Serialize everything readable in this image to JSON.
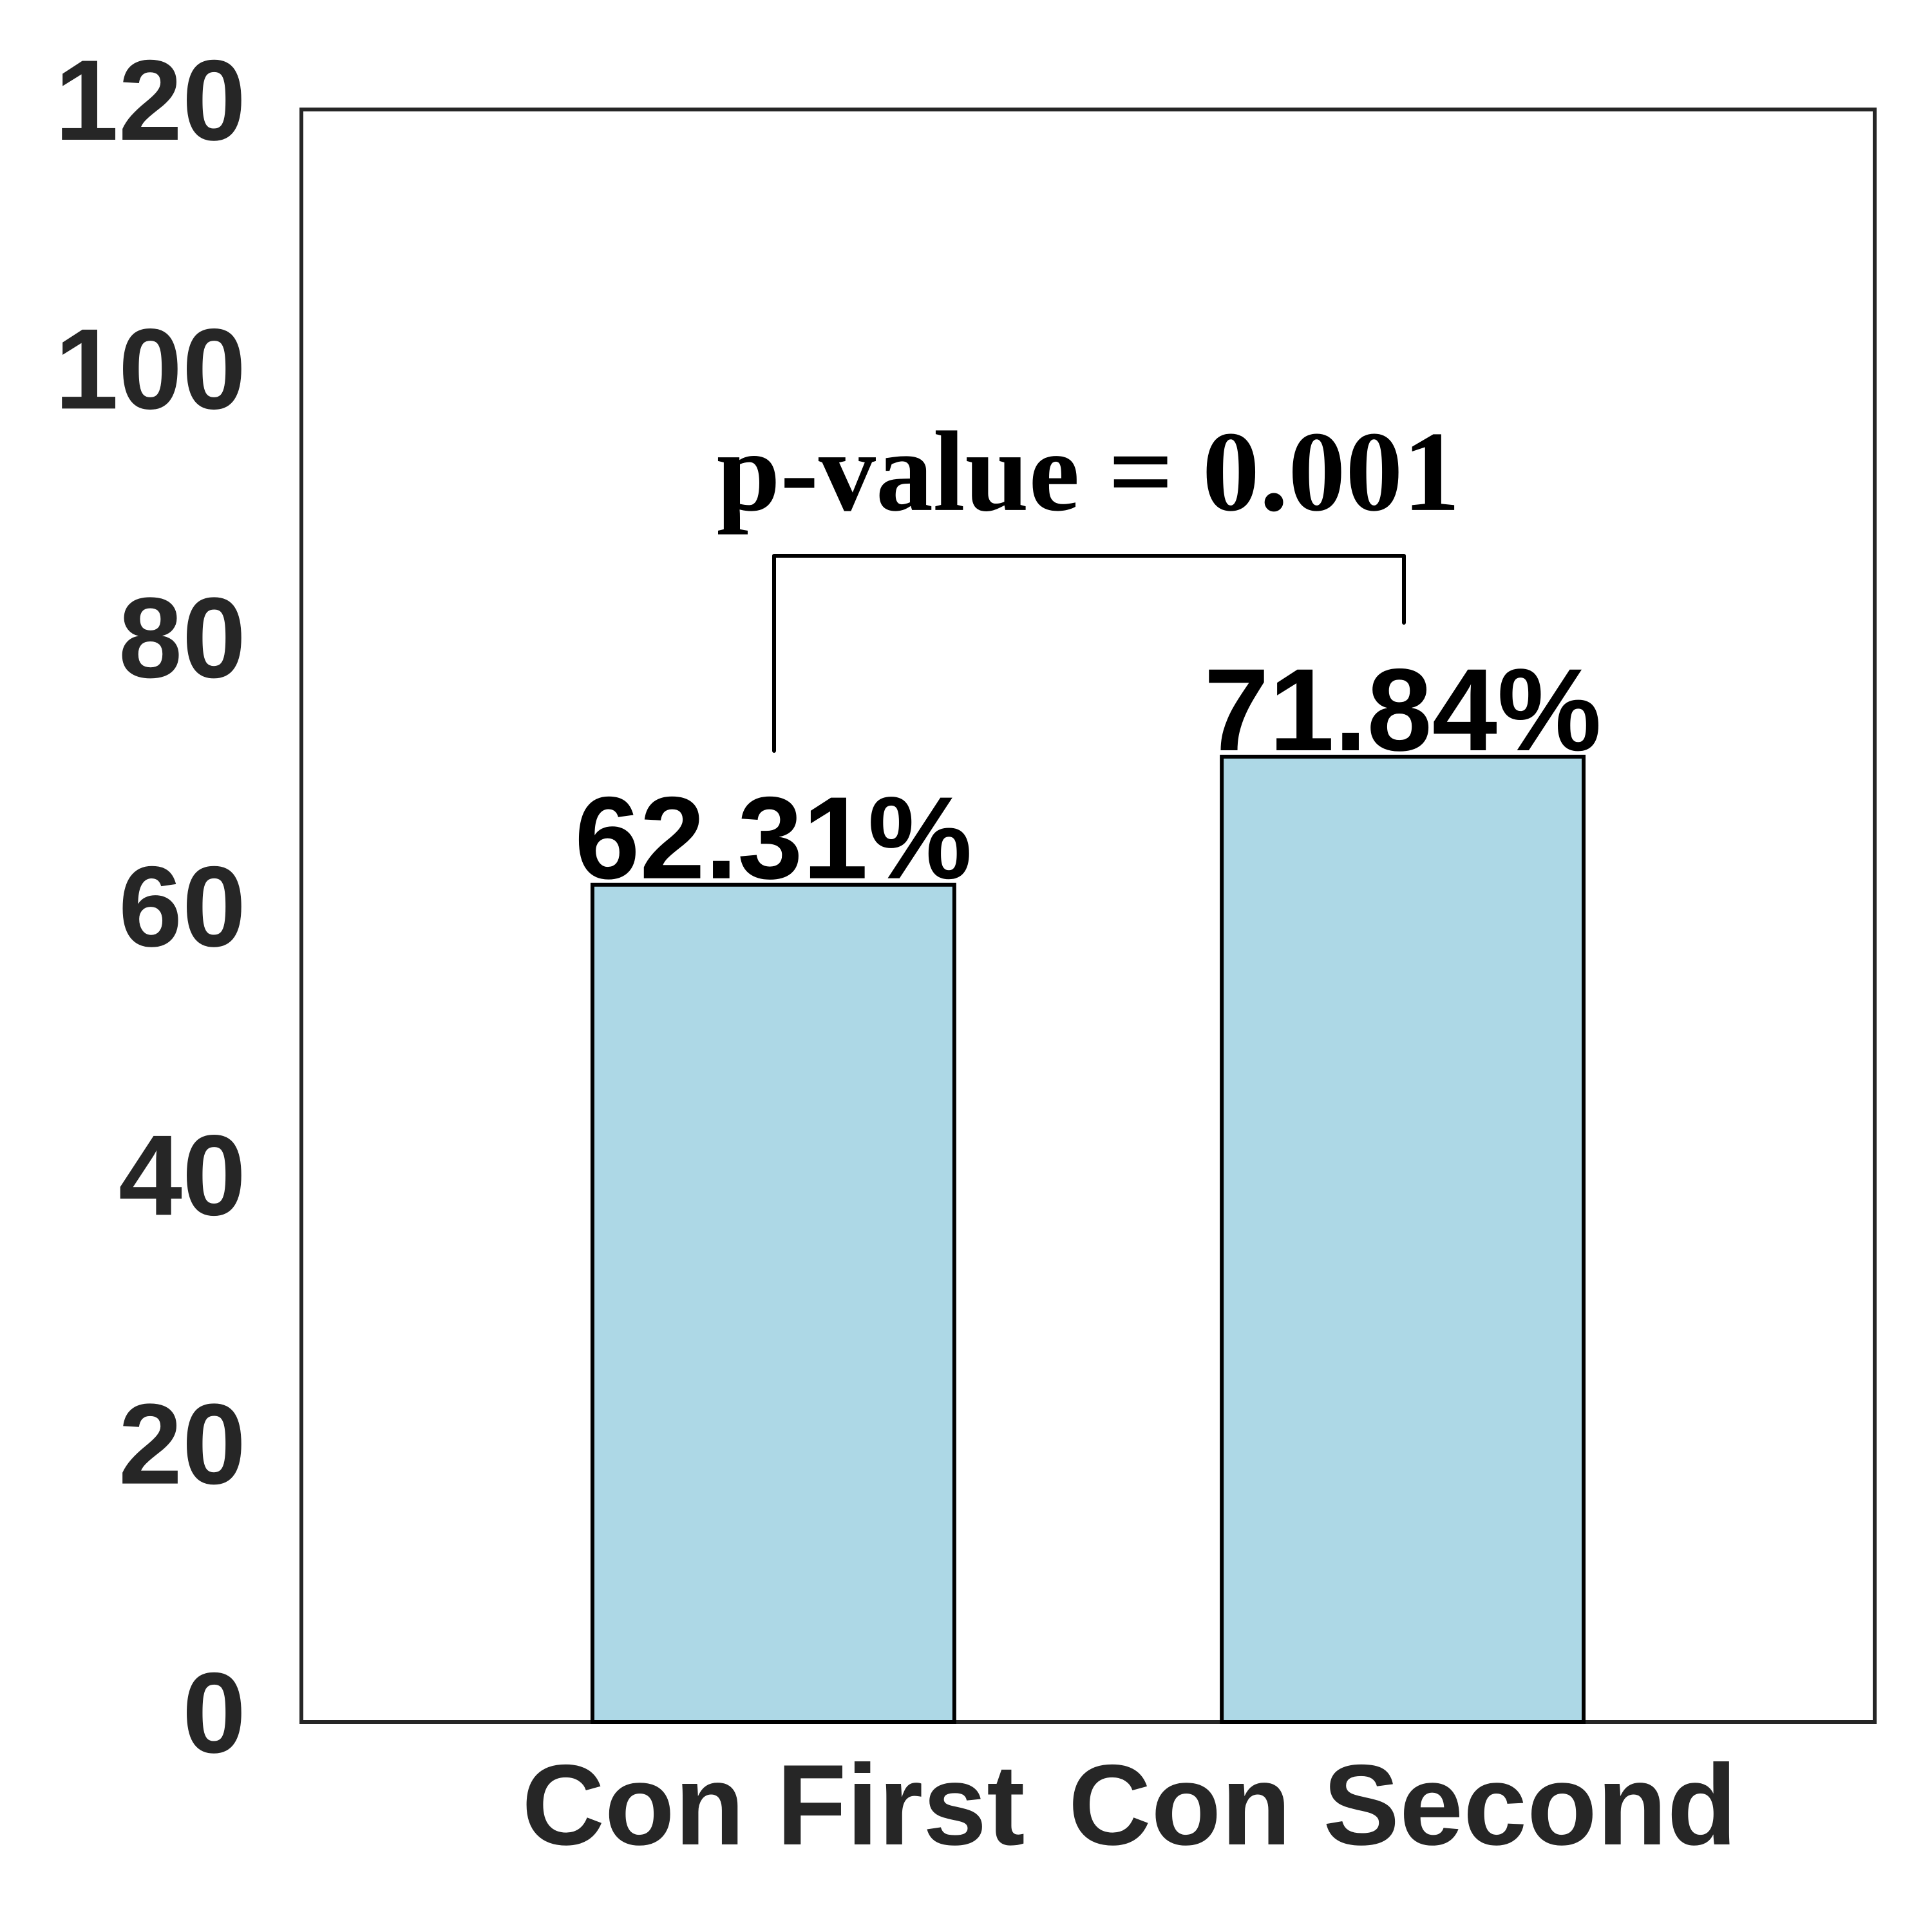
{
  "chart_data": {
    "type": "bar",
    "categories": [
      "Con First",
      "Con Second"
    ],
    "values": [
      62.31,
      71.84
    ],
    "value_labels": [
      "62.31%",
      "71.84%"
    ],
    "color": "#add8e6",
    "ylim": [
      0,
      120
    ],
    "yticks": [
      0,
      20,
      40,
      60,
      80,
      100,
      120
    ],
    "annotation": "p-value = 0.001"
  }
}
